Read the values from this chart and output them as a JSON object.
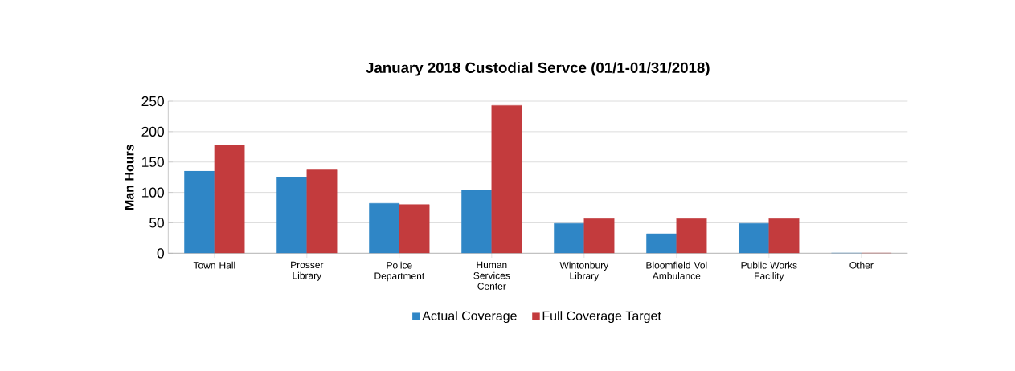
{
  "chart_data": {
    "type": "bar",
    "title": "January 2018 Custodial Servce (01/1-01/31/2018)",
    "ylabel": "Man Hours",
    "categories": [
      "Town Hall",
      "Prosser Library",
      "Police Department",
      "Human Services Center",
      "Wintonbury Library",
      "Bloomfield Vol Ambulance",
      "Public Works Facility",
      "Other"
    ],
    "series": [
      {
        "name": "Actual Coverage",
        "color": "#2f86c6",
        "values": [
          135,
          125,
          82,
          104,
          49,
          32,
          49,
          0
        ]
      },
      {
        "name": "Full Coverage Target",
        "color": "#c33b3d",
        "values": [
          178,
          137,
          80,
          243,
          57,
          57,
          57,
          0
        ]
      }
    ],
    "ylim": [
      0,
      250
    ],
    "yticks": [
      0,
      50,
      100,
      150,
      200,
      250
    ],
    "grid": "y",
    "legend": "bottom"
  }
}
